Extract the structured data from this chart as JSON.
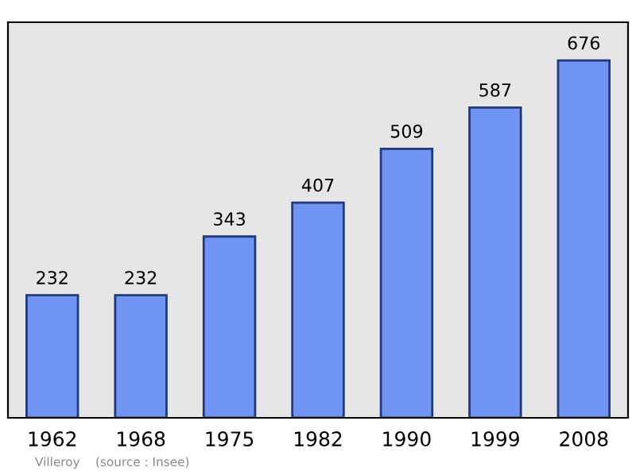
{
  "chart_data": {
    "type": "bar",
    "categories": [
      "1962",
      "1968",
      "1975",
      "1982",
      "1990",
      "1999",
      "2008"
    ],
    "values": [
      232,
      232,
      343,
      407,
      509,
      587,
      676
    ],
    "color": "#7094f2",
    "data_labels": true,
    "grid": false,
    "legend": false,
    "annotations": [
      "Villeroy    (source : Insee)"
    ]
  }
}
